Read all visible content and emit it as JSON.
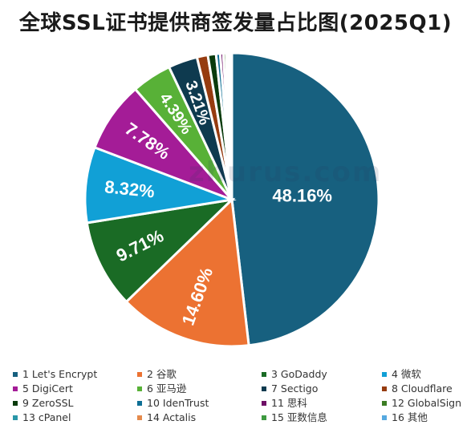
{
  "page": {
    "title": "全球SSL证书提供商签发量占比图(2025Q1)",
    "watermark": "zhurus.com"
  },
  "chart_data": {
    "type": "pie",
    "title": "全球SSL证书提供商签发量占比图(2025Q1)",
    "legend_position": "bottom",
    "categories": [
      "1 Let's Encrypt",
      "2 谷歌",
      "3 GoDaddy",
      "4 微软",
      "5 DigiCert",
      "6 亚马逊",
      "7 Sectigo",
      "8 Cloudflare",
      "9 ZeroSSL",
      "10 IdenTrust",
      "11 思科",
      "12 GlobalSign",
      "13 cPanel",
      "14 Actalis",
      "15 亚数信息",
      "16 其他"
    ],
    "values": [
      48.16,
      14.6,
      9.71,
      8.32,
      7.78,
      4.39,
      3.21,
      1.2,
      0.9,
      0.45,
      0.35,
      0.3,
      0.25,
      0.15,
      0.13,
      0.1
    ],
    "data_labels": [
      "48.16%",
      "14.60%",
      "9.71%",
      "8.32%",
      "7.78%",
      "4.39%",
      "3.21%",
      "",
      "",
      "",
      "",
      "",
      "",
      "",
      "",
      ""
    ],
    "colors": [
      "#17607f",
      "#ec7232",
      "#1a6b25",
      "#11a0d6",
      "#a41c97",
      "#58b137",
      "#0e3a4f",
      "#963c10",
      "#0a3b0c",
      "#0e6f95",
      "#6e0f66",
      "#3c7d24",
      "#2a97a8",
      "#e58a4c",
      "#3e9a40",
      "#56a9e0"
    ]
  }
}
